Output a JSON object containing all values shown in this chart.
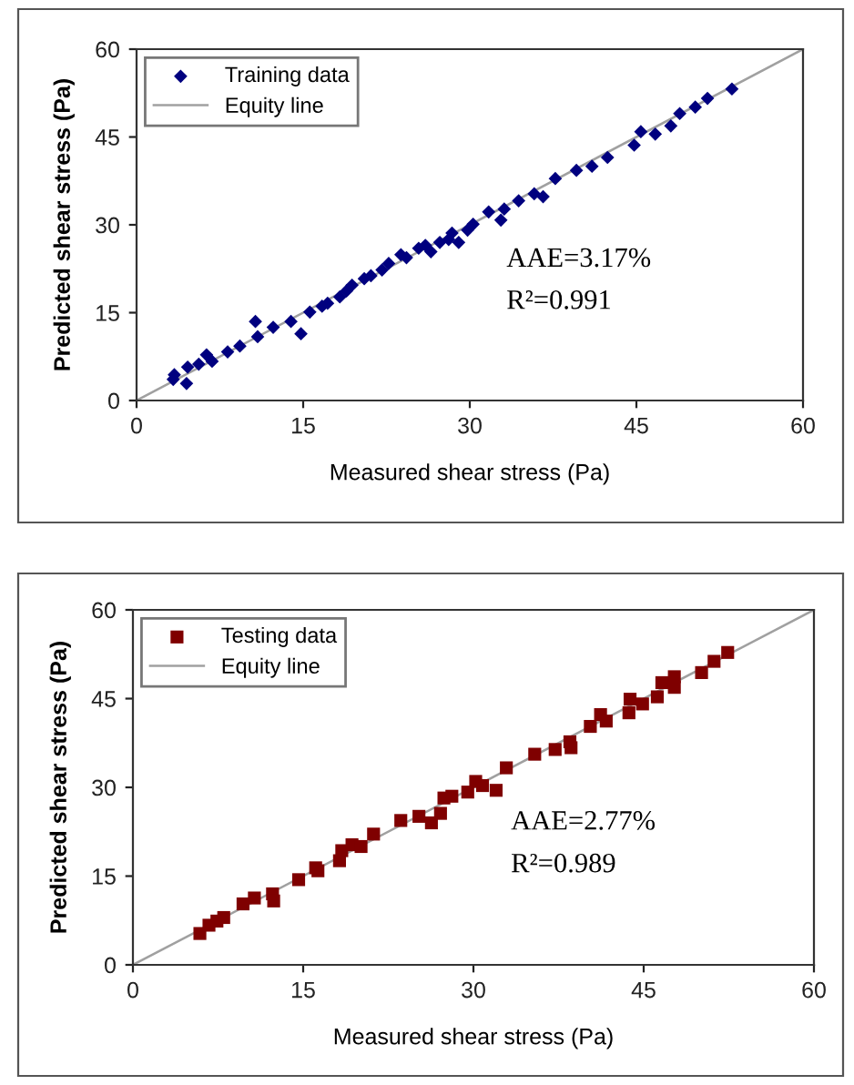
{
  "chart_data": [
    {
      "type": "scatter",
      "xlabel": "Measured shear stress (Pa)",
      "ylabel": "Predicted shear stress (Pa)",
      "xlim": [
        0,
        60
      ],
      "ylim": [
        0,
        60
      ],
      "xticks": [
        0,
        15,
        30,
        45,
        60
      ],
      "yticks": [
        0,
        15,
        30,
        45,
        60
      ],
      "grid": false,
      "legend": "top left",
      "annotations": [
        "AAE=3.17%",
        "R²=0.991"
      ],
      "series": [
        {
          "name": "Training data",
          "marker": "diamond",
          "color": "#00007f",
          "x": [
            3.3,
            3.4,
            4.5,
            4.6,
            5.6,
            6.3,
            6.8,
            8.2,
            9.3,
            10.7,
            10.9,
            12.3,
            13.9,
            14.8,
            15.6,
            16.7,
            17.2,
            18.3,
            18.9,
            19.4,
            20.5,
            21.1,
            22.1,
            22.7,
            23.8,
            24.3,
            25.4,
            26.0,
            26.5,
            27.3,
            28.1,
            28.4,
            29.0,
            29.8,
            30.3,
            31.7,
            32.8,
            33.1,
            34.4,
            35.8,
            36.6,
            37.7,
            39.6,
            41.0,
            42.4,
            44.8,
            45.4,
            46.7,
            48.1,
            48.9,
            50.3,
            51.4,
            53.6
          ],
          "values": [
            3.6,
            4.4,
            2.9,
            5.7,
            6.2,
            7.8,
            6.7,
            8.3,
            9.3,
            13.5,
            10.9,
            12.5,
            13.5,
            11.4,
            15.1,
            16.1,
            16.6,
            17.7,
            18.7,
            19.7,
            20.8,
            21.3,
            22.3,
            23.4,
            24.9,
            24.4,
            26.0,
            26.5,
            25.4,
            27.0,
            27.5,
            28.6,
            27.0,
            29.1,
            30.1,
            32.2,
            30.8,
            32.7,
            34.1,
            35.3,
            34.8,
            37.9,
            39.3,
            40.0,
            41.5,
            43.6,
            45.9,
            45.5,
            46.9,
            49.0,
            50.1,
            51.6,
            53.2
          ]
        },
        {
          "name": "Equity line",
          "type": "line",
          "color": "#a0a0a0",
          "x": [
            0,
            60
          ],
          "values": [
            0,
            60
          ]
        }
      ]
    },
    {
      "type": "scatter",
      "xlabel": "Measured shear stress (Pa)",
      "ylabel": "Predicted shear stress (Pa)",
      "xlim": [
        0,
        60
      ],
      "ylim": [
        0,
        60
      ],
      "xticks": [
        0,
        15,
        30,
        45,
        60
      ],
      "yticks": [
        0,
        15,
        30,
        45,
        60
      ],
      "grid": false,
      "legend": "top left",
      "annotations": [
        "AAE=2.77%",
        "R²=0.989"
      ],
      "series": [
        {
          "name": "Testing data",
          "marker": "square",
          "color": "#7f0000",
          "x": [
            5.9,
            6.7,
            7.4,
            8.0,
            9.7,
            10.7,
            12.3,
            12.4,
            14.6,
            16.1,
            16.3,
            18.2,
            18.4,
            19.3,
            20.1,
            21.2,
            23.6,
            25.2,
            26.3,
            27.1,
            27.4,
            28.1,
            29.5,
            30.2,
            30.8,
            32.0,
            32.9,
            35.4,
            37.2,
            38.5,
            38.6,
            40.3,
            41.2,
            41.7,
            43.7,
            43.8,
            44.9,
            46.2,
            46.6,
            47.7,
            47.7,
            50.1,
            51.2,
            52.4
          ],
          "values": [
            5.3,
            6.7,
            7.4,
            8.0,
            10.3,
            11.3,
            12.0,
            10.8,
            14.4,
            16.4,
            15.9,
            17.6,
            19.3,
            20.3,
            20.0,
            22.1,
            24.4,
            25.1,
            24.0,
            25.6,
            28.2,
            28.5,
            29.2,
            31.0,
            30.3,
            29.5,
            33.3,
            35.6,
            36.4,
            37.7,
            36.7,
            40.3,
            42.3,
            41.2,
            42.6,
            44.9,
            44.1,
            45.3,
            47.7,
            48.7,
            46.9,
            49.4,
            51.3,
            52.8
          ]
        },
        {
          "name": "Equity line",
          "type": "line",
          "color": "#a0a0a0",
          "x": [
            0,
            60
          ],
          "values": [
            0,
            60
          ]
        }
      ]
    }
  ]
}
